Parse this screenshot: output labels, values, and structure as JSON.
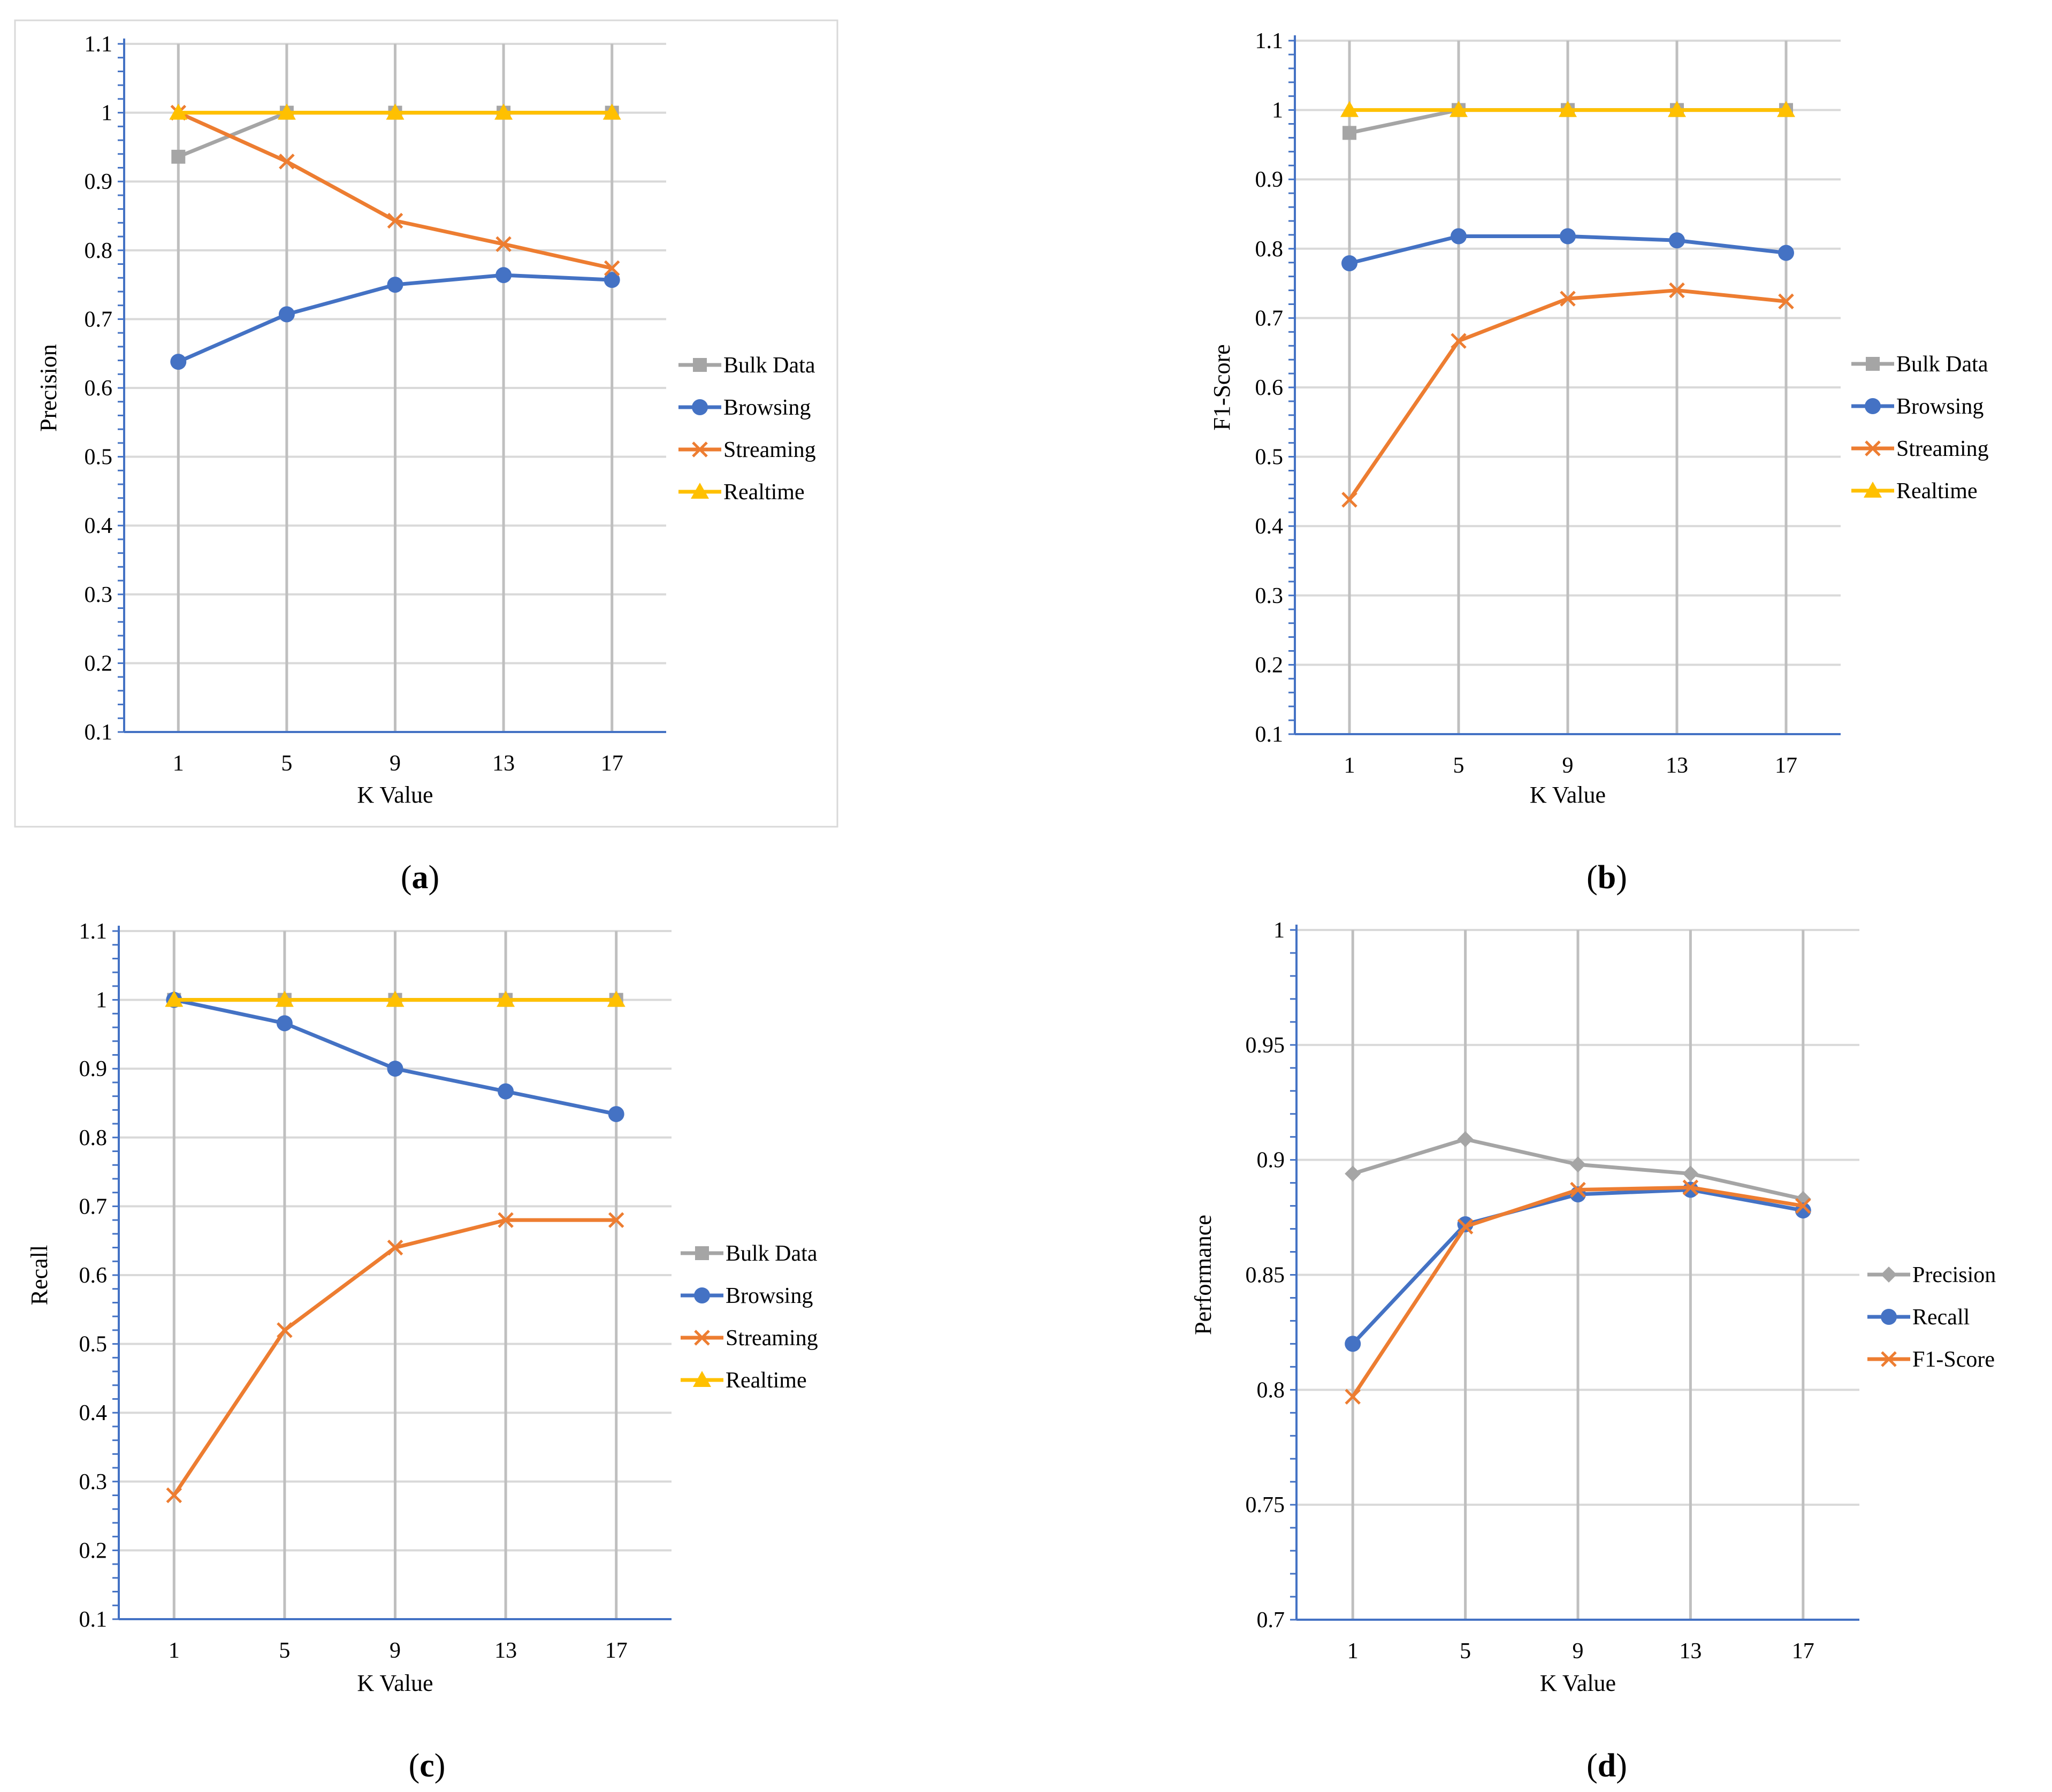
{
  "colors": {
    "bulk": "#a5a5a5",
    "browsing": "#4472c4",
    "streaming": "#ed7d31",
    "realtime": "#ffc000",
    "precision": "#a5a5a5",
    "recall": "#4472c4",
    "f1": "#ed7d31"
  },
  "chart_data": [
    {
      "type": "line",
      "panel": "a",
      "caption": "(a)",
      "caption_letter": "a",
      "ylabel": "Precision",
      "xlabel": "K Value",
      "categories": [
        "1",
        "5",
        "9",
        "13",
        "17"
      ],
      "ylim": [
        0.1,
        1.1
      ],
      "y_ticks": [
        "0.1",
        "0.2",
        "0.3",
        "0.4",
        "0.5",
        "0.6",
        "0.7",
        "0.8",
        "0.9",
        "1",
        "1.1"
      ],
      "y_tick_values": [
        0.1,
        0.2,
        0.3,
        0.4,
        0.5,
        0.6,
        0.7,
        0.8,
        0.9,
        1.0,
        1.1
      ],
      "legend_position": "right",
      "series": [
        {
          "name": "Bulk Data",
          "marker": "square",
          "color_key": "bulk",
          "values": [
            0.936,
            1.0,
            1.0,
            1.0,
            1.0
          ]
        },
        {
          "name": "Browsing",
          "marker": "circle",
          "color_key": "browsing",
          "values": [
            0.638,
            0.707,
            0.75,
            0.764,
            0.757
          ]
        },
        {
          "name": "Streaming",
          "marker": "x",
          "color_key": "streaming",
          "values": [
            1.0,
            0.929,
            0.843,
            0.809,
            0.774
          ]
        },
        {
          "name": "Realtime",
          "marker": "triangle",
          "color_key": "realtime",
          "values": [
            1.0,
            1.0,
            1.0,
            1.0,
            1.0
          ]
        }
      ]
    },
    {
      "type": "line",
      "panel": "b",
      "caption": "(b)",
      "caption_letter": "b",
      "ylabel": "F1-Score",
      "xlabel": "K Value",
      "categories": [
        "1",
        "5",
        "9",
        "13",
        "17"
      ],
      "ylim": [
        0.1,
        1.1
      ],
      "y_ticks": [
        "0.1",
        "0.2",
        "0.3",
        "0.4",
        "0.5",
        "0.6",
        "0.7",
        "0.8",
        "0.9",
        "1",
        "1.1"
      ],
      "y_tick_values": [
        0.1,
        0.2,
        0.3,
        0.4,
        0.5,
        0.6,
        0.7,
        0.8,
        0.9,
        1.0,
        1.1
      ],
      "legend_position": "right",
      "series": [
        {
          "name": "Bulk Data",
          "marker": "square",
          "color_key": "bulk",
          "values": [
            0.967,
            1.0,
            1.0,
            1.0,
            1.0
          ]
        },
        {
          "name": "Browsing",
          "marker": "circle",
          "color_key": "browsing",
          "values": [
            0.779,
            0.818,
            0.818,
            0.812,
            0.794
          ]
        },
        {
          "name": "Streaming",
          "marker": "x",
          "color_key": "streaming",
          "values": [
            0.438,
            0.667,
            0.728,
            0.74,
            0.724
          ]
        },
        {
          "name": "Realtime",
          "marker": "triangle",
          "color_key": "realtime",
          "values": [
            1.0,
            1.0,
            1.0,
            1.0,
            1.0
          ]
        }
      ]
    },
    {
      "type": "line",
      "panel": "c",
      "caption": "(c)",
      "caption_letter": "c",
      "ylabel": "Recall",
      "xlabel": "K Value",
      "categories": [
        "1",
        "5",
        "9",
        "13",
        "17"
      ],
      "ylim": [
        0.1,
        1.1
      ],
      "y_ticks": [
        "0.1",
        "0.2",
        "0.3",
        "0.4",
        "0.5",
        "0.6",
        "0.7",
        "0.8",
        "0.9",
        "1",
        "1.1"
      ],
      "y_tick_values": [
        0.1,
        0.2,
        0.3,
        0.4,
        0.5,
        0.6,
        0.7,
        0.8,
        0.9,
        1.0,
        1.1
      ],
      "legend_position": "right",
      "series": [
        {
          "name": "Bulk Data",
          "marker": "square",
          "color_key": "bulk",
          "values": [
            1.0,
            1.0,
            1.0,
            1.0,
            1.0
          ]
        },
        {
          "name": "Browsing",
          "marker": "circle",
          "color_key": "browsing",
          "values": [
            1.0,
            0.966,
            0.9,
            0.867,
            0.834
          ]
        },
        {
          "name": "Streaming",
          "marker": "x",
          "color_key": "streaming",
          "values": [
            0.28,
            0.52,
            0.64,
            0.68,
            0.68
          ]
        },
        {
          "name": "Realtime",
          "marker": "triangle",
          "color_key": "realtime",
          "values": [
            1.0,
            1.0,
            1.0,
            1.0,
            1.0
          ]
        }
      ]
    },
    {
      "type": "line",
      "panel": "d",
      "caption": "(d)",
      "caption_letter": "d",
      "ylabel": "Performance",
      "xlabel": "K Value",
      "categories": [
        "1",
        "5",
        "9",
        "13",
        "17"
      ],
      "ylim": [
        0.7,
        1.0
      ],
      "y_ticks": [
        "0.7",
        "0.75",
        "0.8",
        "0.85",
        "0.9",
        "0.95",
        "1"
      ],
      "y_tick_values": [
        0.7,
        0.75,
        0.8,
        0.85,
        0.9,
        0.95,
        1.0
      ],
      "legend_position": "right",
      "series": [
        {
          "name": "Precision",
          "marker": "diamond",
          "color_key": "precision",
          "values": [
            0.894,
            0.909,
            0.898,
            0.894,
            0.883
          ]
        },
        {
          "name": "Recall",
          "marker": "circle",
          "color_key": "recall",
          "values": [
            0.82,
            0.872,
            0.885,
            0.887,
            0.878
          ]
        },
        {
          "name": "F1-Score",
          "marker": "x",
          "color_key": "f1",
          "values": [
            0.797,
            0.871,
            0.887,
            0.888,
            0.88
          ]
        }
      ]
    }
  ]
}
